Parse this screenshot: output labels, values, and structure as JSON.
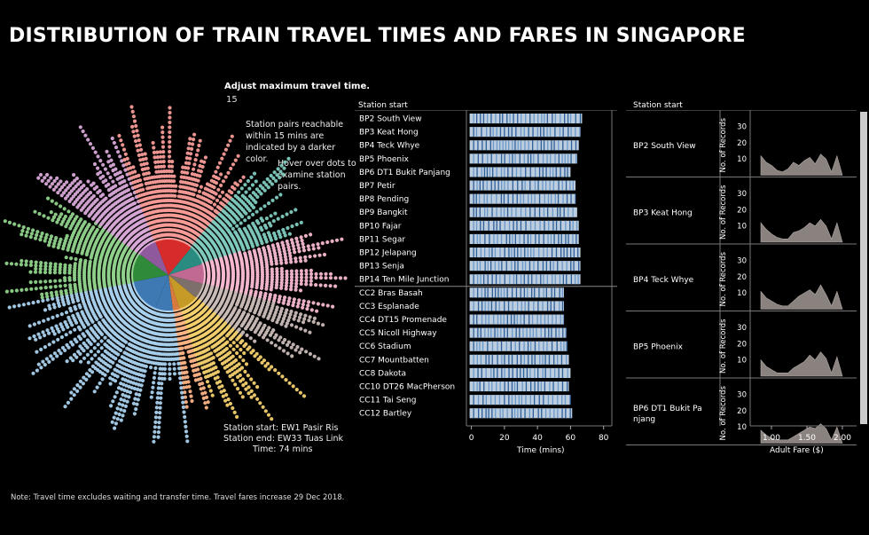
{
  "title": "DISTRIBUTION OF TRAIN TRAVEL TIMES AND FARES IN SINGAPORE",
  "control": {
    "label": "Adjust maximum travel time.",
    "value": "15"
  },
  "notes": {
    "reachable": "Station pairs reachable within 15  mins are indicated by a darker color.",
    "hover": "Hover over dots to examine station pairs."
  },
  "trip": {
    "start": "Station start: EW1  Pasir Ris",
    "end": "Station end: EW33  Tuas Link",
    "time": "Time: 74 mins"
  },
  "footnote": "Note: Travel time excludes waiting and transfer time. Travel fares increase 29 Dec 2018.",
  "chart_data": [
    {
      "type": "scatter",
      "name": "radial-travel-time",
      "lines": [
        {
          "color": "#a8d0ec",
          "share": 0.16
        },
        {
          "color": "#8fd18a",
          "share": 0.13
        },
        {
          "color": "#d7a6d6",
          "share": 0.09
        },
        {
          "color": "#f79b97",
          "share": 0.17
        },
        {
          "color": "#7fcabe",
          "share": 0.09
        },
        {
          "color": "#f5b8d0",
          "share": 0.09
        },
        {
          "color": "#c9bbb6",
          "share": 0.07
        },
        {
          "color": "#f2cf6d",
          "share": 0.09
        },
        {
          "color": "#fbb386",
          "share": 0.03
        },
        {
          "color": "#a8d0ec",
          "share": 0.08
        }
      ]
    },
    {
      "type": "bar",
      "name": "travel-time-by-station",
      "header": "Station start",
      "xlabel": "Time (mins)",
      "xlim": [
        -3,
        85
      ],
      "xticks": [
        0,
        20,
        40,
        60,
        80
      ],
      "stations": [
        {
          "label": "BP2  South View",
          "max": 67
        },
        {
          "label": "BP3  Keat Hong",
          "max": 66
        },
        {
          "label": "BP4  Teck Whye",
          "max": 65
        },
        {
          "label": "BP5  Phoenix",
          "max": 64
        },
        {
          "label": "BP6 DT1 Bukit Panjang",
          "max": 60
        },
        {
          "label": "BP7  Petir",
          "max": 63
        },
        {
          "label": "BP8  Pending",
          "max": 63
        },
        {
          "label": "BP9  Bangkit",
          "max": 64
        },
        {
          "label": "BP10 Fajar",
          "max": 65
        },
        {
          "label": "BP11  Segar",
          "max": 65
        },
        {
          "label": "BP12 Jelapang",
          "max": 66
        },
        {
          "label": "BP13  Senja",
          "max": 66
        },
        {
          "label": "BP14  Ten Mile Junction",
          "max": 66
        },
        {
          "label": "CC2  Bras Basah",
          "max": 56
        },
        {
          "label": "CC3  Esplanade",
          "max": 56
        },
        {
          "label": "CC4 DT15  Promenade",
          "max": 56
        },
        {
          "label": "CC5  Nicoll Highway",
          "max": 57
        },
        {
          "label": "CC6  Stadium",
          "max": 58
        },
        {
          "label": "CC7  Mountbatten",
          "max": 59
        },
        {
          "label": "CC8 Dakota",
          "max": 60
        },
        {
          "label": "CC10 DT26  MacPherson",
          "max": 59
        },
        {
          "label": "CC11  Tai Seng",
          "max": 60
        },
        {
          "label": "CC12  Bartley",
          "max": 61
        }
      ]
    },
    {
      "type": "area",
      "name": "fare-distribution",
      "header": "Station start",
      "xlabel": "Adult Fare ($)",
      "ylabel": "No. of Records",
      "xticks": [
        "1.00",
        "1.50",
        "2.00"
      ],
      "xlim": [
        0.7,
        2.1
      ],
      "yticks": [
        "10",
        "20",
        "30"
      ],
      "ylim": [
        0,
        38
      ],
      "panels": [
        {
          "label": "BP2  South View",
          "values": [
            12,
            8,
            6,
            3,
            2,
            4,
            8,
            6,
            9,
            11,
            7,
            13,
            10,
            2,
            12,
            0
          ]
        },
        {
          "label": "BP3 Keat Hong",
          "values": [
            12,
            8,
            5,
            3,
            2,
            2,
            6,
            7,
            9,
            12,
            10,
            14,
            10,
            2,
            12,
            0
          ]
        },
        {
          "label": "BP4  Teck Whye",
          "values": [
            11,
            7,
            5,
            3,
            2,
            2,
            5,
            8,
            10,
            12,
            9,
            15,
            9,
            2,
            11,
            0
          ]
        },
        {
          "label": "BP5  Phoenix",
          "values": [
            10,
            6,
            4,
            2,
            2,
            2,
            5,
            7,
            9,
            13,
            10,
            15,
            11,
            2,
            12,
            0
          ]
        },
        {
          "label": "BP6 DT1 Bukit Panjang",
          "values": [
            8,
            5,
            3,
            2,
            2,
            2,
            4,
            6,
            8,
            10,
            9,
            12,
            9,
            2,
            10,
            0
          ]
        }
      ]
    }
  ]
}
